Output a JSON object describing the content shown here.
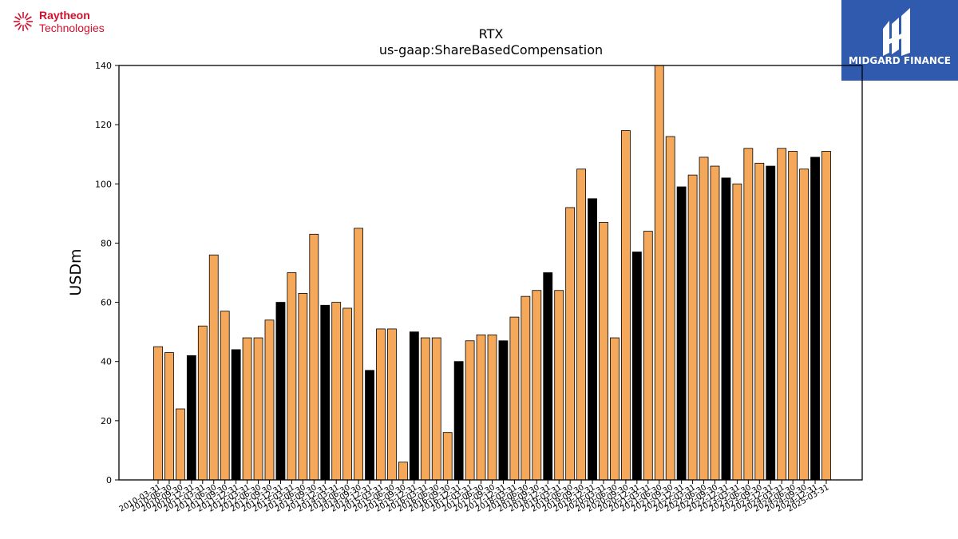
{
  "company_logo": {
    "name": "Raytheon",
    "subname": "Technologies",
    "color": "#d0102c"
  },
  "brand_logo": {
    "name": "MIDGARD FINANCE",
    "bg": "#2f5aad"
  },
  "chart_data": {
    "type": "bar",
    "title": "RTX",
    "subtitle": "us-gaap:ShareBasedCompensation",
    "xlabel": "",
    "ylabel": "USDm",
    "ylim": [
      0,
      140
    ],
    "yticks": [
      0,
      20,
      40,
      60,
      80,
      100,
      120,
      140
    ],
    "colors": {
      "quarterly": "#f5a85a",
      "annual": "#000000"
    },
    "categories": [
      "2010-03-31",
      "2010-06-30",
      "2010-09-30",
      "2010-12-31",
      "2011-03-31",
      "2011-06-30",
      "2011-09-30",
      "2011-12-31",
      "2012-03-31",
      "2012-06-30",
      "2012-09-30",
      "2012-12-31",
      "2013-03-31",
      "2013-06-30",
      "2013-09-30",
      "2013-12-31",
      "2014-03-31",
      "2014-06-30",
      "2014-09-30",
      "2014-12-31",
      "2015-03-31",
      "2015-06-30",
      "2015-09-30",
      "2015-12-31",
      "2016-03-31",
      "2016-06-30",
      "2016-09-30",
      "2016-12-31",
      "2017-03-31",
      "2017-06-30",
      "2017-09-30",
      "2017-12-31",
      "2018-03-31",
      "2018-06-30",
      "2018-09-30",
      "2018-12-31",
      "2019-03-31",
      "2019-06-30",
      "2019-09-30",
      "2019-12-31",
      "2020-03-31",
      "2020-06-30",
      "2020-09-30",
      "2020-12-31",
      "2021-03-31",
      "2021-06-30",
      "2021-09-30",
      "2021-12-31",
      "2022-03-31",
      "2022-06-30",
      "2022-09-30",
      "2022-12-31",
      "2023-03-31",
      "2023-06-30",
      "2023-09-30",
      "2023-12-31",
      "2024-03-31",
      "2024-06-30",
      "2024-09-30",
      "2024-12-31",
      "2025-03-31"
    ],
    "values": [
      45,
      43,
      24,
      42,
      52,
      76,
      57,
      44,
      48,
      48,
      54,
      60,
      70,
      63,
      83,
      59,
      60,
      58,
      85,
      37,
      51,
      51,
      6,
      50,
      48,
      48,
      16,
      40,
      47,
      49,
      49,
      47,
      55,
      62,
      64,
      70,
      64,
      92,
      105,
      95,
      87,
      48,
      118,
      77,
      84,
      140,
      116,
      99,
      103,
      109,
      106,
      102,
      100,
      112,
      107,
      106,
      112,
      111,
      105,
      109,
      111
    ],
    "annual": [
      false,
      false,
      false,
      true,
      false,
      false,
      false,
      true,
      false,
      false,
      false,
      true,
      false,
      false,
      false,
      true,
      false,
      false,
      false,
      true,
      false,
      false,
      false,
      true,
      false,
      false,
      false,
      true,
      false,
      false,
      false,
      true,
      false,
      false,
      false,
      true,
      false,
      false,
      false,
      true,
      false,
      false,
      false,
      true,
      false,
      false,
      false,
      true,
      false,
      false,
      false,
      true,
      false,
      false,
      false,
      true,
      false,
      false,
      false,
      true,
      false
    ]
  }
}
